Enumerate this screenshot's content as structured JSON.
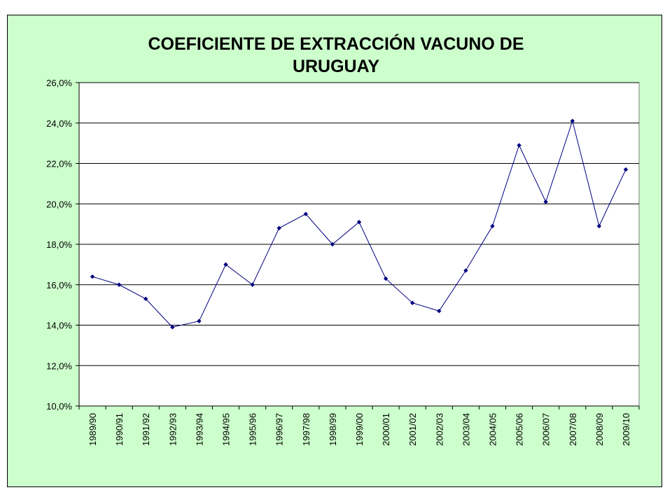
{
  "chart_data": {
    "type": "line",
    "title": [
      "COEFICIENTE DE EXTRACCIÓN VACUNO DE",
      "URUGUAY"
    ],
    "xlabel": "",
    "ylabel": "",
    "categories": [
      "1989/90",
      "1990/91",
      "1991/92",
      "1992/93",
      "1993/94",
      "1994/95",
      "1995/96",
      "1996/97",
      "1997/98",
      "1998/99",
      "1999/00",
      "2000/01",
      "2001/02",
      "2002/03",
      "2003/04",
      "2004/05",
      "2005/06",
      "2006/07",
      "2007/08",
      "2008/09",
      "2009/10"
    ],
    "values": [
      16.4,
      16.0,
      15.3,
      13.9,
      14.2,
      17.0,
      16.0,
      18.8,
      19.5,
      18.0,
      19.1,
      16.3,
      15.1,
      14.7,
      16.7,
      18.9,
      22.9,
      20.1,
      24.1,
      18.9,
      21.7
    ],
    "ylim": [
      10,
      26
    ],
    "ytick_step": 2,
    "ytick_format": "0.0%",
    "decimal_separator": ",",
    "grid": true,
    "legend": "none",
    "colors": {
      "line": "#000080",
      "marker": "#000080",
      "plot_background": "#ffffff",
      "chart_background": "#ccffcc",
      "gridline": "#000000"
    }
  }
}
